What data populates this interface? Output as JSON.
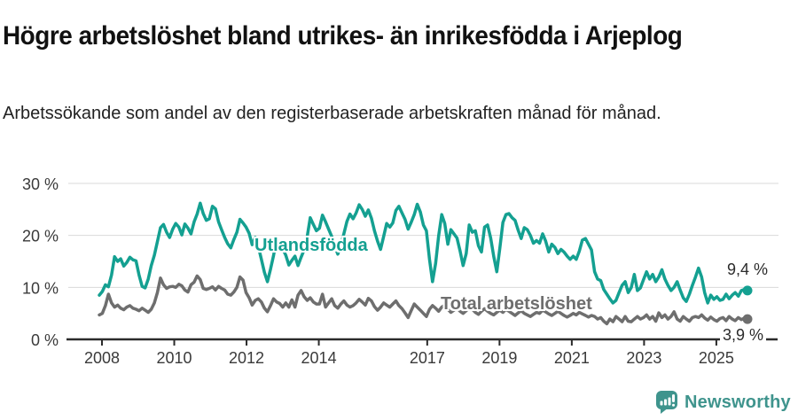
{
  "chart_data": {
    "type": "line",
    "title": "Högre arbetslöshet bland utrikes- än inrikesfödda i Arjeplog",
    "subtitle": "Arbetssökande som andel av den registerbaserade arbetskraften månad för månad.",
    "x_frequency": "monthly",
    "x_start": "2008-01",
    "x_end": "2025-09",
    "ylim": [
      0,
      32
    ],
    "grid": "horizontal",
    "legend_position": "inline-labels",
    "yticks": [
      {
        "value": 0,
        "label": "0 %"
      },
      {
        "value": 10,
        "label": "10 %"
      },
      {
        "value": 20,
        "label": "20 %"
      },
      {
        "value": 30,
        "label": "30 %"
      }
    ],
    "xticks": [
      {
        "year": 2008,
        "label": "2008"
      },
      {
        "year": 2010,
        "label": "2010"
      },
      {
        "year": 2012,
        "label": "2012"
      },
      {
        "year": 2014,
        "label": "2014"
      },
      {
        "year": 2017,
        "label": "2017"
      },
      {
        "year": 2019,
        "label": "2019"
      },
      {
        "year": 2021,
        "label": "2021"
      },
      {
        "year": 2023,
        "label": "2023"
      },
      {
        "year": 2025,
        "label": "2025"
      }
    ],
    "series": [
      {
        "name": "Total arbetslöshet",
        "color": "#6e6e6e",
        "end_label": "3,9 %",
        "end_value": 3.9,
        "values": [
          4.7,
          5.0,
          6.5,
          8.7,
          7.0,
          6.2,
          6.6,
          6.0,
          5.7,
          6.2,
          6.5,
          6.0,
          5.8,
          5.5,
          6.0,
          5.6,
          5.2,
          5.8,
          7.0,
          9.0,
          11.8,
          10.5,
          9.8,
          10.1,
          10.2,
          10.0,
          10.6,
          10.3,
          9.5,
          9.1,
          10.5,
          11.0,
          12.2,
          11.5,
          9.8,
          9.6,
          9.8,
          10.1,
          9.5,
          10.2,
          9.8,
          9.5,
          8.7,
          8.5,
          9.1,
          10.0,
          12.0,
          11.4,
          9.0,
          8.0,
          6.6,
          7.5,
          7.8,
          7.2,
          6.0,
          5.3,
          6.5,
          7.8,
          7.2,
          6.9,
          6.2,
          7.0,
          6.2,
          7.6,
          6.2,
          8.5,
          9.4,
          8.2,
          7.5,
          8.0,
          7.2,
          6.8,
          6.8,
          8.7,
          6.2,
          7.0,
          7.8,
          6.5,
          6.0,
          6.8,
          7.4,
          6.6,
          6.2,
          6.5,
          7.0,
          7.7,
          7.2,
          6.6,
          7.9,
          7.4,
          6.3,
          5.6,
          6.2,
          7.0,
          6.6,
          6.2,
          6.8,
          7.4,
          6.5,
          5.9,
          5.1,
          4.2,
          5.5,
          6.8,
          6.2,
          5.6,
          5.0,
          4.4,
          5.8,
          6.5,
          6.0,
          5.4,
          6.2,
          6.6,
          5.8,
          5.2,
          5.6,
          6.0,
          5.4,
          5.0,
          5.5,
          6.2,
          5.8,
          5.2,
          4.8,
          5.4,
          5.9,
          5.4,
          5.0,
          4.7,
          5.2,
          5.6,
          5.2,
          5.8,
          5.4,
          5.0,
          4.6,
          5.1,
          5.5,
          5.0,
          4.7,
          4.4,
          4.8,
          5.2,
          5.0,
          5.6,
          5.3,
          4.9,
          4.6,
          5.0,
          5.4,
          5.0,
          4.6,
          4.3,
          4.6,
          5.0,
          4.7,
          5.2,
          4.9,
          4.6,
          4.3,
          4.6,
          4.4,
          3.9,
          4.2,
          3.5,
          3.0,
          3.9,
          3.4,
          4.4,
          3.9,
          3.4,
          4.4,
          3.5,
          3.4,
          3.9,
          4.4,
          3.9,
          4.2,
          4.7,
          3.9,
          4.4,
          3.5,
          5.1,
          4.2,
          4.7,
          3.9,
          4.4,
          5.3,
          3.9,
          3.5,
          4.4,
          3.9,
          3.5,
          4.2,
          4.4,
          4.2,
          4.7,
          4.1,
          3.7,
          4.3,
          3.8,
          3.5,
          4.0,
          4.2,
          3.6,
          4.4,
          3.9,
          3.6,
          4.2,
          3.8,
          4.1,
          3.9
        ]
      },
      {
        "name": "Utlandsfödda",
        "color": "#14a091",
        "end_label": "9,4 %",
        "end_value": 9.4,
        "values": [
          8.5,
          9.2,
          10.5,
          10.1,
          12.4,
          15.9,
          15.0,
          15.5,
          14.1,
          14.8,
          15.8,
          15.3,
          15.1,
          12.4,
          10.2,
          9.9,
          11.6,
          14.2,
          16.2,
          18.8,
          21.5,
          22.1,
          20.6,
          19.6,
          21.2,
          22.3,
          21.6,
          20.1,
          22.2,
          21.4,
          20.3,
          22.6,
          24.1,
          26.2,
          24.2,
          22.9,
          23.2,
          25.6,
          25.1,
          22.6,
          21.1,
          19.6,
          18.4,
          17.6,
          19.2,
          20.6,
          23.1,
          22.4,
          21.6,
          20.4,
          18.2,
          19.6,
          17.9,
          15.4,
          12.9,
          11.1,
          13.5,
          16.1,
          19.4,
          18.3,
          17.4,
          16.2,
          14.3,
          15.2,
          16.0,
          14.2,
          15.8,
          17.2,
          19.8,
          23.4,
          22.1,
          20.9,
          21.4,
          23.9,
          22.6,
          21.2,
          19.8,
          17.9,
          16.4,
          18.1,
          20.3,
          22.7,
          24.1,
          23.2,
          24.3,
          25.9,
          25.0,
          23.7,
          24.9,
          23.3,
          20.9,
          18.9,
          17.3,
          19.8,
          22.3,
          21.6,
          22.4,
          24.8,
          25.6,
          24.3,
          23.1,
          21.2,
          22.5,
          24.0,
          26.0,
          24.5,
          22.0,
          20.9,
          15.4,
          11.1,
          14.6,
          19.9,
          24.0,
          22.3,
          18.3,
          21.1,
          20.3,
          19.5,
          17.0,
          14.2,
          16.5,
          22.0,
          20.6,
          20.9,
          18.0,
          16.8,
          21.6,
          22.0,
          19.5,
          16.0,
          13.0,
          17.5,
          22.5,
          24.0,
          24.2,
          23.4,
          22.9,
          21.0,
          19.4,
          21.5,
          21.1,
          20.0,
          18.5,
          19.0,
          18.5,
          20.3,
          18.9,
          16.8,
          18.3,
          17.7,
          16.5,
          17.3,
          16.8,
          16.0,
          15.4,
          16.0,
          15.4,
          17.0,
          19.1,
          19.4,
          18.3,
          17.2,
          13.0,
          11.6,
          11.3,
          9.6,
          8.7,
          7.8,
          7.0,
          7.5,
          9.0,
          10.4,
          11.1,
          9.0,
          10.0,
          12.5,
          9.4,
          9.9,
          11.5,
          13.0,
          11.6,
          12.5,
          11.1,
          12.0,
          13.4,
          11.6,
          10.4,
          9.4,
          10.0,
          11.1,
          9.5,
          8.0,
          7.3,
          8.7,
          10.4,
          12.0,
          13.7,
          12.0,
          9.0,
          7.0,
          8.5,
          7.7,
          8.2,
          7.5,
          7.7,
          8.7,
          7.8,
          8.5,
          9.0,
          8.3,
          9.4,
          9.6,
          9.4
        ]
      }
    ]
  },
  "footer": {
    "brand": "Newsworthy"
  },
  "colors": {
    "accent_teal": "#14a091",
    "line_gray": "#6e6e6e",
    "brand_teal": "#3f948d",
    "text_dark": "#2b2b2b",
    "grid": "#d9d9d9",
    "axis": "#2b2b2b"
  }
}
